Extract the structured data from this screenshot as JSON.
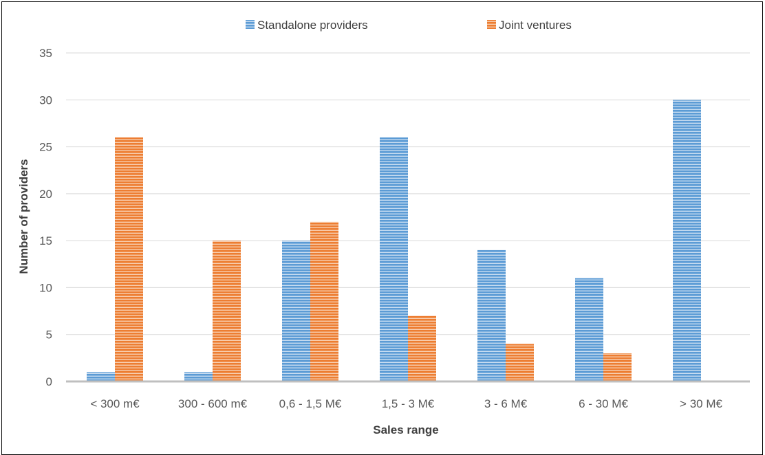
{
  "chart_data": {
    "type": "bar",
    "title": "",
    "xlabel": "Sales range",
    "ylabel": "Number of providers",
    "categories": [
      "< 300 m€",
      "300 - 600 m€",
      "0,6 - 1,5 M€",
      "1,5 - 3 M€",
      "3 - 6 M€",
      "6 - 30 M€",
      "> 30 M€"
    ],
    "series": [
      {
        "name": "Standalone providers",
        "color": "#5B9BD5",
        "values": [
          1,
          1,
          15,
          26,
          14,
          11,
          30
        ]
      },
      {
        "name": "Joint ventures",
        "color": "#ED7D31",
        "values": [
          26,
          15,
          17,
          7,
          4,
          3,
          0
        ]
      }
    ],
    "ylim": [
      0,
      35
    ],
    "yticks": [
      0,
      5,
      10,
      15,
      20,
      25,
      30,
      35
    ],
    "grid": true,
    "legend_position": "top"
  }
}
